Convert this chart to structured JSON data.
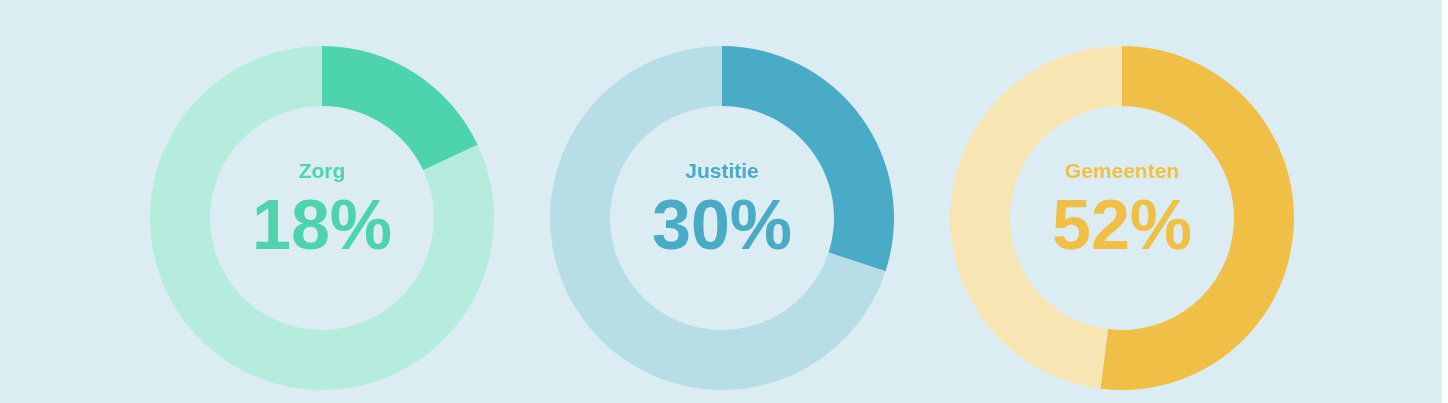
{
  "chart_data": [
    {
      "type": "donut",
      "categories": [
        "Zorg",
        null
      ],
      "values": [
        18,
        82
      ],
      "colors": [
        "#4dd4ac",
        "#b6ecdd"
      ],
      "value_labels": [
        "18%",
        null
      ]
    },
    {
      "type": "donut",
      "categories": [
        "Justitie",
        null
      ],
      "values": [
        30,
        70
      ],
      "colors": [
        "#4aabc7",
        "#b7dde6"
      ],
      "value_labels": [
        "30%",
        null
      ]
    },
    {
      "type": "donut",
      "categories": [
        "Gemeenten",
        null
      ],
      "values": [
        52,
        48
      ],
      "colors": [
        "#f0bf45",
        "#f8e5b4"
      ],
      "value_labels": [
        "52%",
        null
      ]
    }
  ]
}
